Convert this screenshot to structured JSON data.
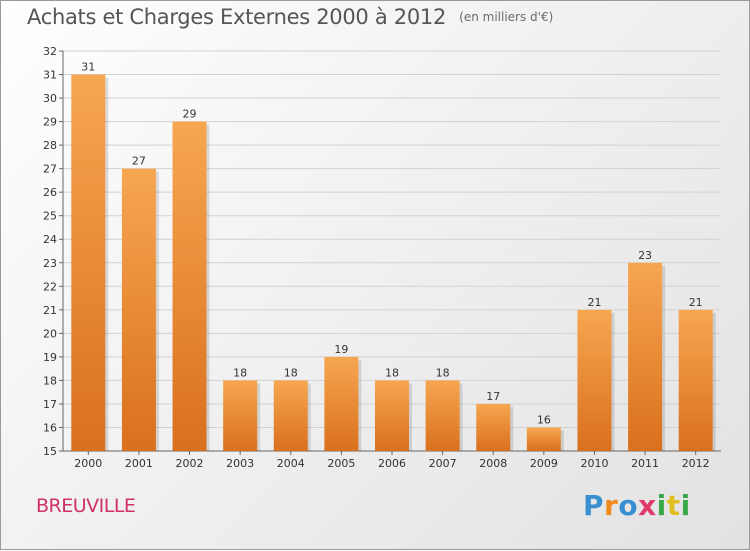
{
  "header": {
    "title": "Achats et Charges Externes 2000 à 2012",
    "subtitle": "(en milliers d'€)"
  },
  "footer": {
    "commune": "BREUVILLE",
    "logo": {
      "text": "Proxiti",
      "colors": [
        "#3a8fd0",
        "#f08a1c",
        "#3a8fd0",
        "#e03a6a",
        "#3aa84a",
        "#e0c020",
        "#3aa84a"
      ]
    }
  },
  "chart_data": {
    "type": "bar",
    "categories": [
      "2000",
      "2001",
      "2002",
      "2003",
      "2004",
      "2005",
      "2006",
      "2007",
      "2008",
      "2009",
      "2010",
      "2011",
      "2012"
    ],
    "values": [
      31,
      27,
      29,
      18,
      18,
      19,
      18,
      18,
      17,
      16,
      21,
      23,
      21
    ],
    "ylim": [
      15,
      32
    ],
    "yticks": [
      15,
      16,
      17,
      18,
      19,
      20,
      21,
      22,
      23,
      24,
      25,
      26,
      27,
      28,
      29,
      30,
      31,
      32
    ],
    "grid": true,
    "bar_color_top": "#f7a650",
    "bar_color_bottom": "#d9701e",
    "legend": "none"
  }
}
